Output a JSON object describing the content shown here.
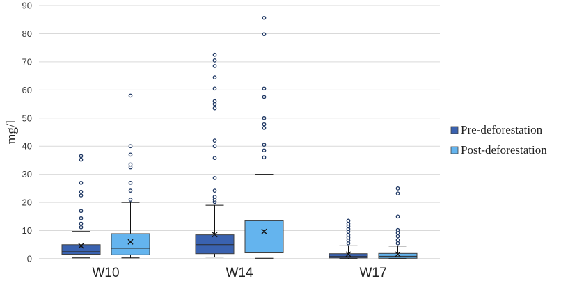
{
  "chart_data": {
    "type": "boxplot",
    "title": "",
    "xlabel": "",
    "ylabel": "mg/l",
    "ylim": [
      0,
      90
    ],
    "yticks": [
      0,
      10,
      20,
      30,
      40,
      50,
      60,
      70,
      80,
      90
    ],
    "grid": true,
    "legend_position": "right",
    "categories": [
      "W10",
      "W14",
      "W17"
    ],
    "series": [
      {
        "name": "Pre-deforestation",
        "color": "#3a62b0",
        "boxes": [
          {
            "min": 0.3,
            "q1": 1.6,
            "median": 2.5,
            "q3": 5.0,
            "max": 9.7,
            "mean": 4.6,
            "outliers": [
              11.2,
              12.5,
              14.4,
              17.0,
              22.5,
              23.8,
              27.0,
              35.2,
              36.5
            ]
          },
          {
            "min": 0.6,
            "q1": 1.8,
            "median": 5.0,
            "q3": 8.5,
            "max": 19.0,
            "mean": 8.6,
            "outliers": [
              20.2,
              21.0,
              22.0,
              24.2,
              28.7,
              35.8,
              40.0,
              42.0,
              53.5,
              55.0,
              56.0,
              60.5,
              64.5,
              68.5,
              70.5,
              72.5
            ]
          },
          {
            "min": 0.05,
            "q1": 0.3,
            "median": 0.8,
            "q3": 1.8,
            "max": 4.6,
            "mean": 1.6,
            "outliers": [
              5.5,
              6.5,
              7.5,
              8.5,
              9.6,
              10.6,
              11.5,
              12.5,
              13.5
            ]
          }
        ]
      },
      {
        "name": "Post-deforestation",
        "color": "#64b4ee",
        "boxes": [
          {
            "min": 0.3,
            "q1": 1.4,
            "median": 3.7,
            "q3": 8.9,
            "max": 20.0,
            "mean": 6.0,
            "outliers": [
              21.0,
              24.2,
              27.0,
              32.5,
              33.5,
              37.0,
              40.0,
              58.0
            ]
          },
          {
            "min": 0.2,
            "q1": 2.1,
            "median": 6.3,
            "q3": 13.5,
            "max": 30.0,
            "mean": 9.7,
            "outliers": [
              36.0,
              38.5,
              40.5,
              46.5,
              47.8,
              50.0,
              57.5,
              60.5,
              79.8,
              85.6
            ]
          },
          {
            "min": 0.05,
            "q1": 0.2,
            "median": 0.9,
            "q3": 1.9,
            "max": 4.5,
            "mean": 1.6,
            "outliers": [
              5.5,
              6.6,
              8.0,
              9.2,
              10.2,
              15.0,
              23.2,
              25.0
            ]
          }
        ]
      }
    ]
  }
}
